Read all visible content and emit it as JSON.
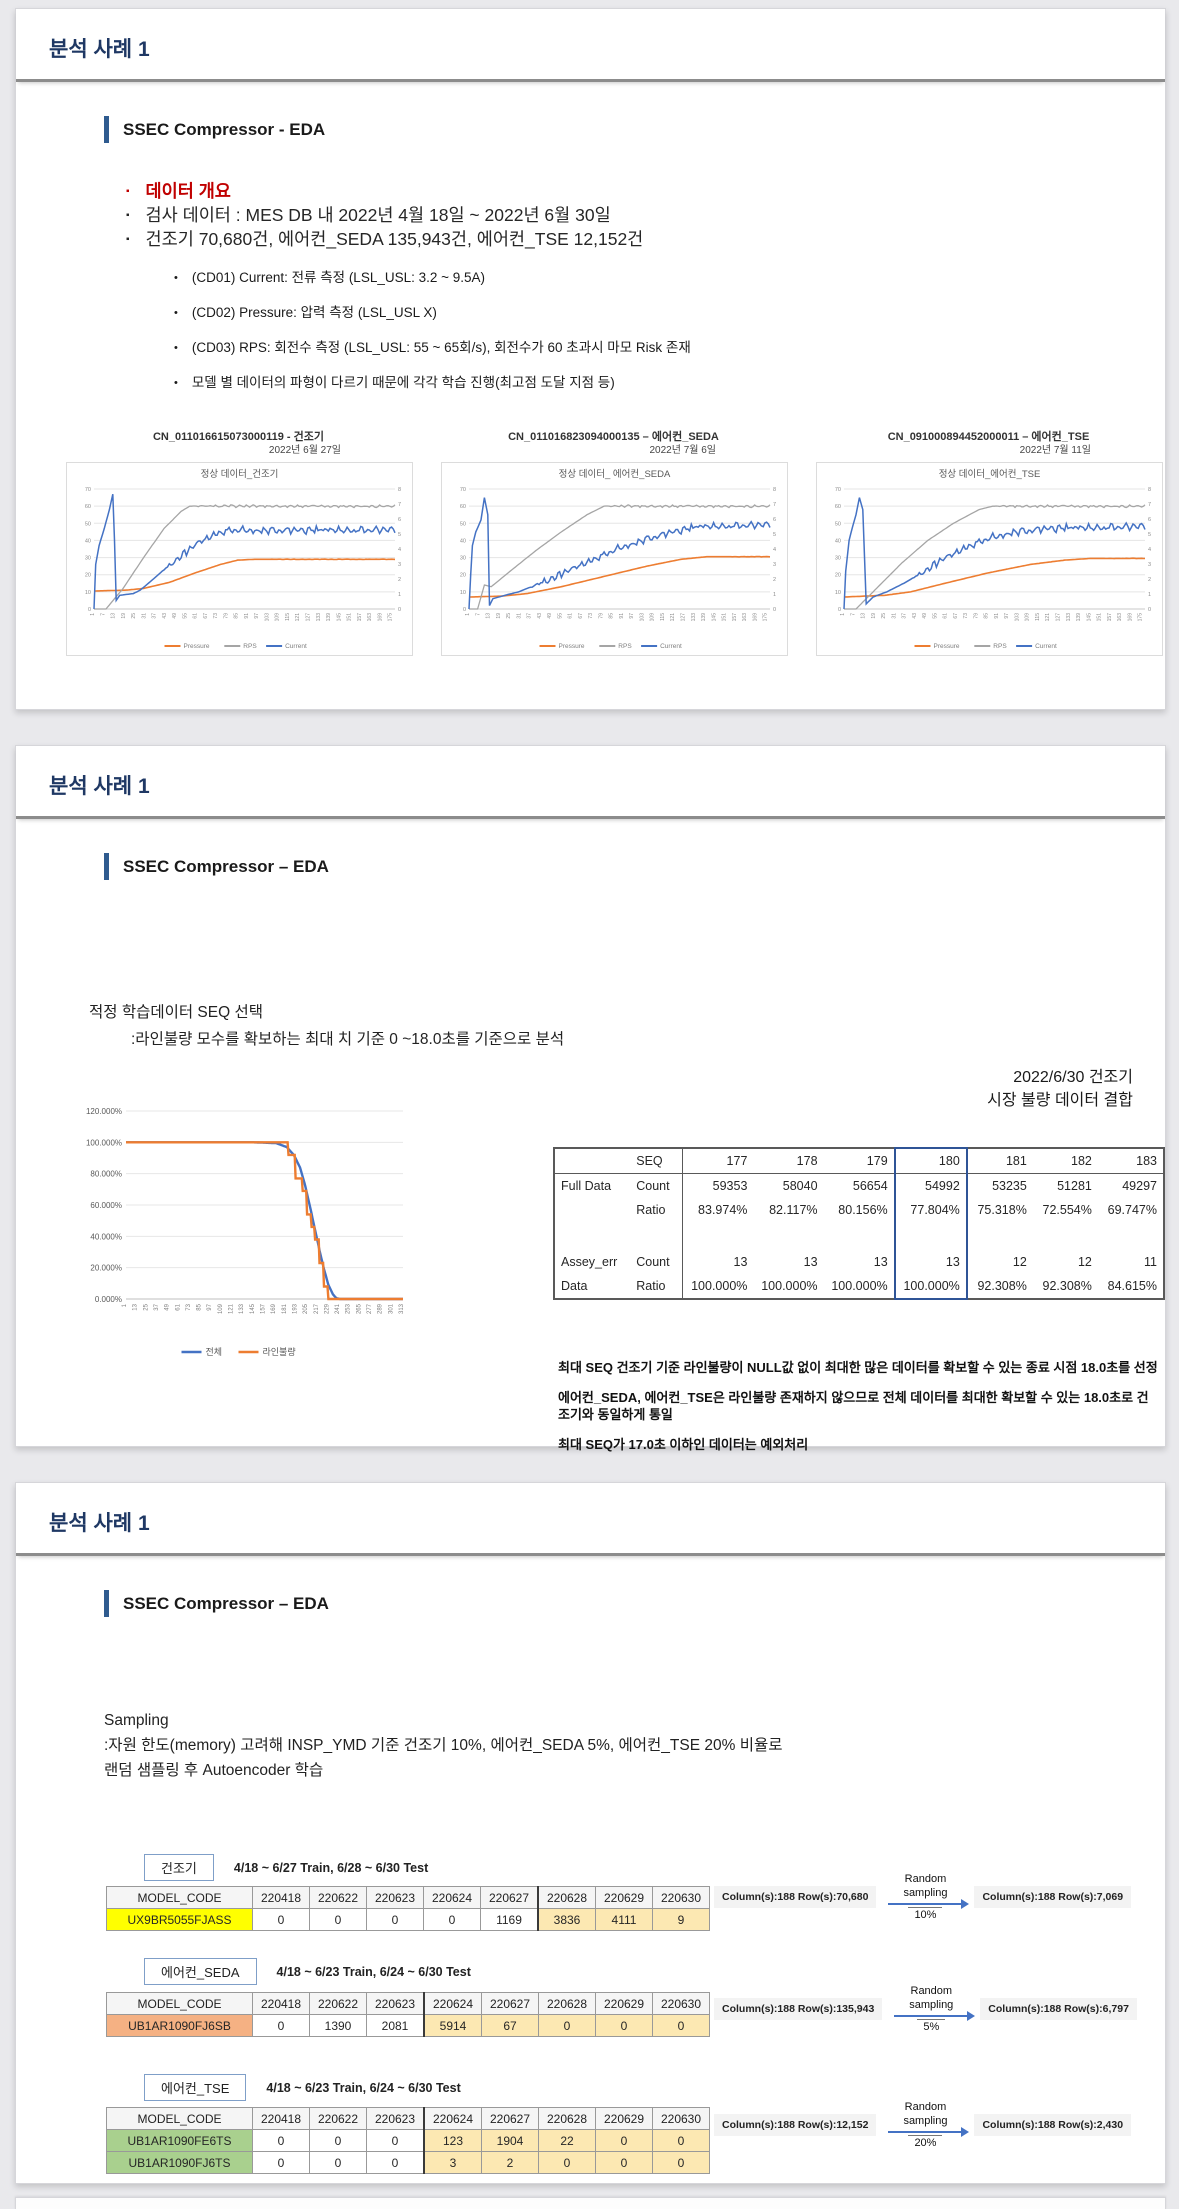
{
  "colors": {
    "accent_navy": "#1f3864",
    "accent_bar": "#2f5b8f",
    "red": "#c00000",
    "pressure": "#ed7d31",
    "rps": "#a5a5a5",
    "current": "#4472c4",
    "highlight_border": "#2f5496",
    "yellow": "#ffff00",
    "salmon": "#f5b183",
    "green": "#a9d08e",
    "beige": "#fce8b2"
  },
  "slide1": {
    "title": "분석 사례 1",
    "heading": "SSEC Compressor - EDA",
    "overview_label": "데이터 개요",
    "bullets": [
      "검사 데이터 : MES DB 내 2022년 4월 18일 ~ 2022년 6월 30일",
      "건조기 70,680건, 에어컨_SEDA 135,943건, 에어컨_TSE 12,152건"
    ],
    "sub_bullets": [
      "(CD01) Current: 전류 측정 (LSL_USL: 3.2 ~ 9.5A)",
      "(CD02) Pressure: 압력 측정 (LSL_USL X)",
      "(CD03) RPS: 회전수 측정 (LSL_USL: 55 ~ 65회/s),  회전수가 60 초과시 마모 Risk 존재",
      "모델 별 데이터의 파형이 다르기 때문에 각각 학습 진행(최고점 도달 지점 등)"
    ],
    "charts": [
      {
        "caption": "CN_011016615073000119 - 건조기",
        "date": "2022년 6월 27일"
      },
      {
        "caption": "CN_011016823094000135 – 에어컨_SEDA",
        "date": "2022년 7월 6일"
      },
      {
        "caption": "CN_091000894452000011 – 에어컨_TSE",
        "date": "2022년 7월 11일"
      }
    ]
  },
  "slide2": {
    "title": "분석 사례 1",
    "heading": "SSEC Compressor – EDA",
    "intro_line1": "적정 학습데이터 SEQ 선택",
    "intro_line2": ":라인불량 모수를 확보하는 최대 치 기준 0 ~18.0초를 기준으로 분석",
    "right_label_line1": "2022/6/30 건조기",
    "right_label_line2": "시장 불량 데이터 결합",
    "table": {
      "header_label": "SEQ",
      "columns": [
        "177",
        "178",
        "179",
        "180",
        "181",
        "182",
        "183"
      ],
      "highlight_column": "180",
      "rows": [
        {
          "group": "Full Data",
          "label": "Count",
          "values": [
            "59353",
            "58040",
            "56654",
            "54992",
            "53235",
            "51281",
            "49297"
          ]
        },
        {
          "group": "",
          "label": "Ratio",
          "values": [
            "83.974%",
            "82.117%",
            "80.156%",
            "77.804%",
            "75.318%",
            "72.554%",
            "69.747%"
          ]
        },
        {
          "spacer": true
        },
        {
          "group": "Assey_err",
          "label": "Count",
          "values": [
            "13",
            "13",
            "13",
            "13",
            "12",
            "12",
            "11"
          ]
        },
        {
          "group": "Data",
          "label": "Ratio",
          "values": [
            "100.000%",
            "100.000%",
            "100.000%",
            "100.000%",
            "92.308%",
            "92.308%",
            "84.615%"
          ]
        }
      ]
    },
    "notes": [
      "최대 SEQ 건조기 기준 라인불량이 NULL값 없이 최대한 많은 데이터를 확보할 수 있는 종료 시점 18.0초를 선정",
      "에어컨_SEDA, 에어컨_TSE은 라인불량 존재하지 않으므로 전체 데이터를 최대한 확보할 수 있는 18.0초로 건조기와 동일하게 통일",
      "최대 SEQ가 17.0초 이하인 데이터는 예외처리"
    ]
  },
  "slide3": {
    "title": "분석 사례 1",
    "heading": "SSEC Compressor – EDA",
    "intro_line1": "Sampling",
    "intro_line2": ":자원 한도(memory) 고려해 INSP_YMD 기준 건조기 10%, 에어컨_SEDA 5%, 에어컨_TSE 20% 비율로",
    "intro_line3": "랜덤 샘플링 후 Autoencoder 학습",
    "columns": [
      "MODEL_CODE",
      "220418",
      "220622",
      "220623",
      "220624",
      "220627",
      "220628",
      "220629",
      "220630"
    ],
    "groups": [
      {
        "badge": "건조기",
        "split": "4/18 ~ 6/27 Train, 6/28 ~ 6/30 Test",
        "rows": [
          {
            "model": "UX9BR5055FJASS",
            "model_bg": "#ffff00",
            "values": [
              "0",
              "0",
              "0",
              "0",
              "1169",
              "3836",
              "4111",
              "9"
            ],
            "test_from": 5
          }
        ],
        "flow": {
          "from": "Column(s):188   Row(s):70,680",
          "label": "Random sampling",
          "pct": "10%",
          "to": "Column(s):188   Row(s):7,069"
        }
      },
      {
        "badge": "에어컨_SEDA",
        "split": "4/18 ~ 6/23 Train, 6/24 ~ 6/30 Test",
        "rows": [
          {
            "model": "UB1AR1090FJ6SB",
            "model_bg": "#f5b183",
            "values": [
              "0",
              "1390",
              "2081",
              "5914",
              "67",
              "0",
              "0",
              "0"
            ],
            "test_from": 3
          }
        ],
        "flow": {
          "from": "Column(s):188   Row(s):135,943",
          "label": "Random sampling",
          "pct": "5%",
          "to": "Column(s):188   Row(s):6,797"
        }
      },
      {
        "badge": "에어컨_TSE",
        "split": "4/18 ~ 6/23 Train, 6/24 ~ 6/30 Test",
        "rows": [
          {
            "model": "UB1AR1090FE6TS",
            "model_bg": "#a9d08e",
            "values": [
              "0",
              "0",
              "0",
              "123",
              "1904",
              "22",
              "0",
              "0"
            ],
            "test_from": 3
          },
          {
            "model": "UB1AR1090FJ6TS",
            "model_bg": "#a9d08e",
            "values": [
              "0",
              "0",
              "0",
              "3",
              "2",
              "0",
              "0",
              "0"
            ],
            "test_from": 3
          }
        ],
        "flow": {
          "from": "Column(s):188   Row(s):12,152",
          "label": "Random sampling",
          "pct": "20%",
          "to": "Column(s):188   Row(s):2,430"
        }
      }
    ]
  },
  "chart_data": [
    {
      "type": "line",
      "title": "정상 데이터_건조기",
      "x_range": [
        1,
        177
      ],
      "x_tick_start": 1,
      "x_tick_step": 6,
      "x_tick_end": 175,
      "ylim_left": [
        0,
        70
      ],
      "ylim_right": [
        0,
        8
      ],
      "legend_position": "bottom",
      "series": [
        {
          "name": "Pressure",
          "color": "#ed7d31",
          "width": 1.6,
          "noise": 0.15,
          "noise_from": 100,
          "keypoints": [
            [
              1,
              10.5
            ],
            [
              20,
              11
            ],
            [
              30,
              12
            ],
            [
              45,
              15.5
            ],
            [
              60,
              21
            ],
            [
              75,
              26
            ],
            [
              85,
              28.5
            ],
            [
              95,
              29
            ],
            [
              177,
              29
            ]
          ]
        },
        {
          "name": "RPS",
          "color": "#a5a5a5",
          "width": 1.3,
          "noise": 0.9,
          "noise_from": 57,
          "keypoints": [
            [
              1,
              0
            ],
            [
              8,
              0
            ],
            [
              18,
              12
            ],
            [
              30,
              30
            ],
            [
              42,
              47
            ],
            [
              52,
              57
            ],
            [
              57,
              60
            ],
            [
              177,
              60
            ]
          ]
        },
        {
          "name": "Current",
          "color": "#4472c4",
          "width": 1.5,
          "noise": 2.5,
          "noise_from": 40,
          "keypoints": [
            [
              1,
              0
            ],
            [
              2,
              26
            ],
            [
              4,
              37
            ],
            [
              7,
              47
            ],
            [
              10,
              58
            ],
            [
              12,
              67
            ],
            [
              13,
              40
            ],
            [
              14,
              5
            ],
            [
              16,
              8
            ],
            [
              24,
              9
            ],
            [
              28,
              11
            ],
            [
              34,
              16
            ],
            [
              42,
              23
            ],
            [
              52,
              31
            ],
            [
              62,
              39
            ],
            [
              72,
              44
            ],
            [
              80,
              46
            ],
            [
              177,
              46
            ]
          ]
        }
      ]
    },
    {
      "type": "line",
      "title": "정상 데이터_ 에어컨_SEDA",
      "x_range": [
        1,
        177
      ],
      "x_tick_start": 1,
      "x_tick_step": 6,
      "x_tick_end": 175,
      "ylim_left": [
        0,
        70
      ],
      "ylim_right": [
        0,
        8
      ],
      "legend_position": "bottom",
      "series": [
        {
          "name": "Pressure",
          "color": "#ed7d31",
          "width": 1.6,
          "noise": 0.15,
          "noise_from": 150,
          "keypoints": [
            [
              1,
              7
            ],
            [
              20,
              7.5
            ],
            [
              35,
              9
            ],
            [
              55,
              13
            ],
            [
              80,
              19
            ],
            [
              105,
              25
            ],
            [
              125,
              29
            ],
            [
              140,
              30.5
            ],
            [
              177,
              30.5
            ]
          ]
        },
        {
          "name": "RPS",
          "color": "#a5a5a5",
          "width": 1.3,
          "noise": 0.9,
          "noise_from": 80,
          "keypoints": [
            [
              1,
              0
            ],
            [
              6,
              0
            ],
            [
              10,
              14
            ],
            [
              14,
              13
            ],
            [
              25,
              22
            ],
            [
              40,
              34
            ],
            [
              55,
              45
            ],
            [
              70,
              55
            ],
            [
              80,
              60
            ],
            [
              177,
              60
            ]
          ]
        },
        {
          "name": "Current",
          "color": "#4472c4",
          "width": 1.5,
          "noise": 2.4,
          "noise_from": 35,
          "keypoints": [
            [
              1,
              0
            ],
            [
              2,
              20
            ],
            [
              3,
              37
            ],
            [
              5,
              45
            ],
            [
              8,
              52
            ],
            [
              10,
              65
            ],
            [
              12,
              55
            ],
            [
              13,
              2
            ],
            [
              15,
              6
            ],
            [
              22,
              8
            ],
            [
              30,
              10
            ],
            [
              40,
              14
            ],
            [
              52,
              19
            ],
            [
              64,
              25
            ],
            [
              76,
              30
            ],
            [
              90,
              36
            ],
            [
              105,
              41
            ],
            [
              120,
              45
            ],
            [
              135,
              48
            ],
            [
              177,
              49
            ]
          ]
        }
      ]
    },
    {
      "type": "line",
      "title": "정상 데이터_에어컨_TSE",
      "x_range": [
        1,
        177
      ],
      "x_tick_start": 1,
      "x_tick_step": 6,
      "x_tick_end": 175,
      "ylim_left": [
        0,
        70
      ],
      "ylim_right": [
        0,
        8
      ],
      "legend_position": "bottom",
      "series": [
        {
          "name": "Pressure",
          "color": "#ed7d31",
          "width": 1.6,
          "noise": 0.15,
          "noise_from": 150,
          "keypoints": [
            [
              1,
              7
            ],
            [
              25,
              8
            ],
            [
              40,
              10
            ],
            [
              60,
              15
            ],
            [
              85,
              21
            ],
            [
              110,
              26
            ],
            [
              130,
              28.5
            ],
            [
              145,
              29.5
            ],
            [
              177,
              29.5
            ]
          ]
        },
        {
          "name": "RPS",
          "color": "#a5a5a5",
          "width": 1.3,
          "noise": 0.9,
          "noise_from": 88,
          "keypoints": [
            [
              1,
              0
            ],
            [
              8,
              0
            ],
            [
              20,
              12
            ],
            [
              35,
              27
            ],
            [
              50,
              40
            ],
            [
              65,
              50
            ],
            [
              80,
              58
            ],
            [
              88,
              60
            ],
            [
              177,
              60
            ]
          ]
        },
        {
          "name": "Current",
          "color": "#4472c4",
          "width": 1.5,
          "noise": 2.6,
          "noise_from": 40,
          "keypoints": [
            [
              1,
              0
            ],
            [
              2,
              22
            ],
            [
              4,
              40
            ],
            [
              6,
              48
            ],
            [
              8,
              55
            ],
            [
              10,
              65
            ],
            [
              12,
              58
            ],
            [
              14,
              3
            ],
            [
              18,
              7
            ],
            [
              26,
              10
            ],
            [
              36,
              15
            ],
            [
              48,
              22
            ],
            [
              60,
              30
            ],
            [
              72,
              36
            ],
            [
              85,
              41
            ],
            [
              100,
              45
            ],
            [
              120,
              47
            ],
            [
              177,
              48
            ]
          ]
        }
      ]
    },
    {
      "type": "line",
      "title": "",
      "x_range": [
        1,
        313
      ],
      "x_tick_start": 1,
      "x_tick_step": 12,
      "x_tick_end": 313,
      "ylim_left": [
        0,
        120
      ],
      "y_tick_labels": [
        "0.000%",
        "20.000%",
        "40.000%",
        "60.000%",
        "80.000%",
        "100.000%",
        "120.000%"
      ],
      "legend_position": "bottom",
      "series": [
        {
          "name": "전체",
          "color": "#4472c4",
          "width": 2.4,
          "noise": 0,
          "noise_from": 999,
          "keypoints": [
            [
              1,
              100
            ],
            [
              145,
              100
            ],
            [
              170,
              99.5
            ],
            [
              182,
              97
            ],
            [
              190,
              92
            ],
            [
              197,
              84
            ],
            [
              203,
              72
            ],
            [
              209,
              57
            ],
            [
              214,
              44
            ],
            [
              219,
              31
            ],
            [
              224,
              19
            ],
            [
              229,
              9
            ],
            [
              234,
              3
            ],
            [
              238,
              0.5
            ],
            [
              242,
              0
            ],
            [
              313,
              0
            ]
          ]
        },
        {
          "name": "라인불량",
          "color": "#ed7d31",
          "width": 2.4,
          "noise": 0,
          "noise_from": 999,
          "keypoints": [
            [
              1,
              100
            ],
            [
              183,
              100
            ],
            [
              184,
              92
            ],
            [
              191,
              92
            ],
            [
              192,
              77
            ],
            [
              199,
              77
            ],
            [
              200,
              69
            ],
            [
              204,
              69
            ],
            [
              205,
              54
            ],
            [
              209,
              54
            ],
            [
              210,
              46
            ],
            [
              213,
              46
            ],
            [
              214,
              38
            ],
            [
              218,
              38
            ],
            [
              219,
              23
            ],
            [
              223,
              23
            ],
            [
              224,
              8
            ],
            [
              228,
              8
            ],
            [
              229,
              0
            ],
            [
              313,
              0
            ]
          ]
        }
      ]
    }
  ]
}
